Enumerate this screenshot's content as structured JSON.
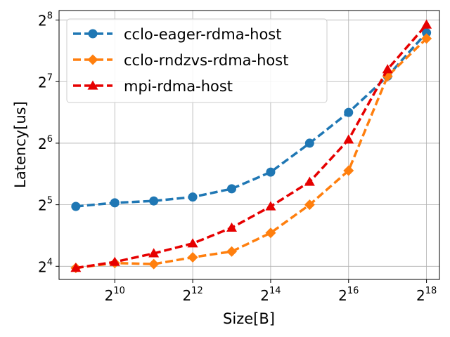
{
  "chart_data": {
    "type": "line",
    "title": "",
    "xlabel": "Size[B]",
    "ylabel": "Latency[us]",
    "xscale": "log2",
    "yscale": "log2",
    "grid": true,
    "legend_position": "top-left",
    "xlim": [
      380,
      330000
    ],
    "ylim": [
      13.8,
      285
    ],
    "x_ticks": [
      {
        "value": 1024,
        "base": "2",
        "exp": "10"
      },
      {
        "value": 4096,
        "base": "2",
        "exp": "12"
      },
      {
        "value": 16384,
        "base": "2",
        "exp": "14"
      },
      {
        "value": 65536,
        "base": "2",
        "exp": "16"
      },
      {
        "value": 262144,
        "base": "2",
        "exp": "18"
      }
    ],
    "y_ticks": [
      {
        "value": 16,
        "base": "2",
        "exp": "4"
      },
      {
        "value": 32,
        "base": "2",
        "exp": "5"
      },
      {
        "value": 64,
        "base": "2",
        "exp": "6"
      },
      {
        "value": 128,
        "base": "2",
        "exp": "7"
      },
      {
        "value": 256,
        "base": "2",
        "exp": "8"
      }
    ],
    "x": [
      512,
      1024,
      2048,
      4096,
      8192,
      16384,
      32768,
      65536,
      131072,
      262144
    ],
    "series": [
      {
        "name": "cclo-eager-rdma-host",
        "color": "#1f77b4",
        "marker": "circle",
        "values": [
          31.4,
          32.7,
          33.4,
          34.9,
          38.3,
          46.2,
          64.0,
          90.5,
          136.0,
          222.0
        ]
      },
      {
        "name": "cclo-rndzvs-rdma-host",
        "color": "#ff7f0e",
        "marker": "diamond",
        "values": [
          15.7,
          16.6,
          16.4,
          17.7,
          18.9,
          23.3,
          32.0,
          47.0,
          136.0,
          208.0
        ]
      },
      {
        "name": "mpi-rdma-host",
        "color": "#e60000",
        "marker": "triangle",
        "values": [
          15.7,
          16.8,
          18.5,
          20.7,
          24.7,
          31.4,
          41.4,
          66.6,
          147.0,
          243.0
        ]
      }
    ]
  }
}
